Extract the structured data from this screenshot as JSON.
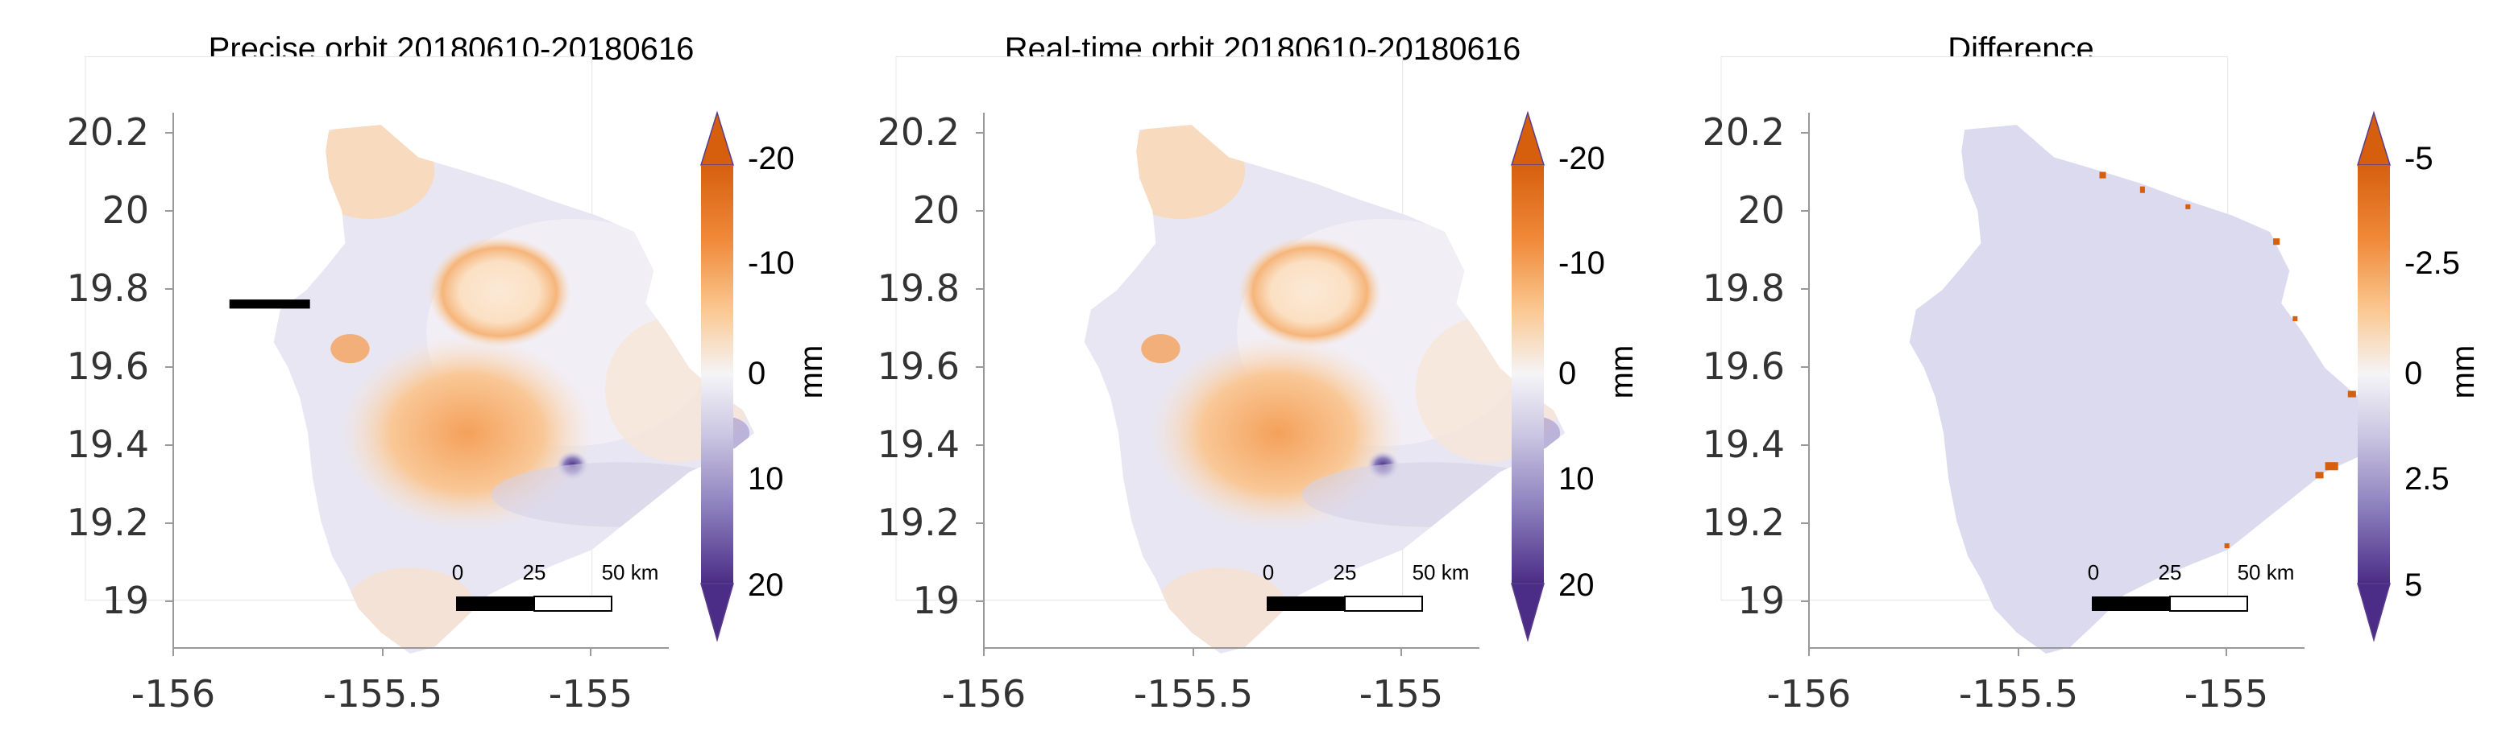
{
  "figure": {
    "unit_label": "mm",
    "x_ticks": [
      "-156",
      "-155.5",
      "-155"
    ],
    "y_ticks": [
      "20.2",
      "20",
      "19.8",
      "19.6",
      "19.4",
      "19.2",
      "19"
    ],
    "scalebar": {
      "labels": [
        "0",
        "25",
        "50 km"
      ]
    },
    "colors": {
      "orange_dark": "#d65f0e",
      "orange": "#f4a15a",
      "orange_light": "#fbd7b0",
      "neutral": "#f4f3f7",
      "purple_light": "#d6d2e8",
      "purple": "#8b7fbc",
      "purple_dark": "#4b2c86",
      "difference_fill": "#dcdaee"
    }
  },
  "panels": [
    {
      "title": "Precise orbit 20180610-20180616",
      "colorbar_ticks": [
        "-20",
        "-10",
        "0",
        "10",
        "20"
      ],
      "colorbar_range": [
        -20,
        20
      ]
    },
    {
      "title": "Real-time orbit 20180610-20180616",
      "colorbar_ticks": [
        "-20",
        "-10",
        "0",
        "10",
        "20"
      ],
      "colorbar_range": [
        -20,
        20
      ]
    },
    {
      "title": "Difference",
      "colorbar_ticks": [
        "-5",
        "-2.5",
        "0",
        "2.5",
        "5"
      ],
      "colorbar_range": [
        -5,
        5
      ]
    }
  ]
}
